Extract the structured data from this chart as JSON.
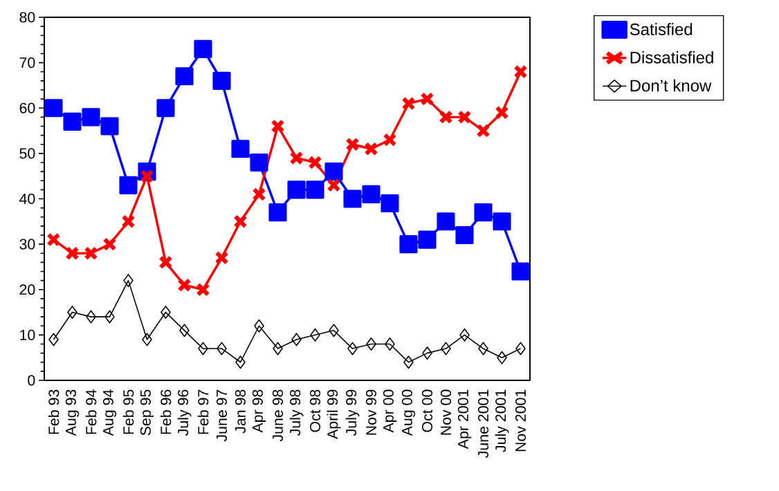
{
  "chart_data": {
    "type": "line",
    "categories": [
      "Feb 93",
      "Aug 93",
      "Feb 94",
      "Aug 94",
      "Feb 95",
      "Sep 95",
      "Feb 96",
      "July 96",
      "Feb 97",
      "June 97",
      "Jan 98",
      "Apr 98",
      "June 98",
      "July 98",
      "Oct 98",
      "April 99",
      "July 99",
      "Nov 99",
      "Apr 00",
      "Aug 00",
      "Oct 00",
      "Nov 00",
      "Apr 2001",
      "June 2001",
      "July 2001",
      "Nov 2001"
    ],
    "series": [
      {
        "name": "Satisfied",
        "color": "#0000ff",
        "marker": "square",
        "values": [
          60,
          57,
          58,
          56,
          43,
          46,
          60,
          67,
          73,
          66,
          51,
          48,
          37,
          42,
          42,
          46,
          40,
          41,
          39,
          30,
          31,
          35,
          32,
          37,
          35,
          24
        ]
      },
      {
        "name": "Dissatisfied",
        "color": "#ff0000",
        "marker": "cross",
        "values": [
          31,
          28,
          28,
          30,
          35,
          45,
          26,
          21,
          20,
          27,
          35,
          41,
          56,
          49,
          48,
          43,
          52,
          51,
          53,
          61,
          62,
          58,
          58,
          55,
          59,
          68
        ]
      },
      {
        "name": "Don’t know",
        "color": "#000000",
        "marker": "diamond",
        "values": [
          9,
          15,
          14,
          14,
          22,
          9,
          15,
          11,
          7,
          7,
          4,
          12,
          7,
          9,
          10,
          11,
          7,
          8,
          8,
          4,
          6,
          7,
          10,
          7,
          5,
          7
        ]
      }
    ],
    "ylim": [
      0,
      80
    ],
    "yticks": [
      0,
      10,
      20,
      30,
      40,
      50,
      60,
      70,
      80
    ],
    "grid": false,
    "legend": "top right",
    "line_style": "solid"
  }
}
